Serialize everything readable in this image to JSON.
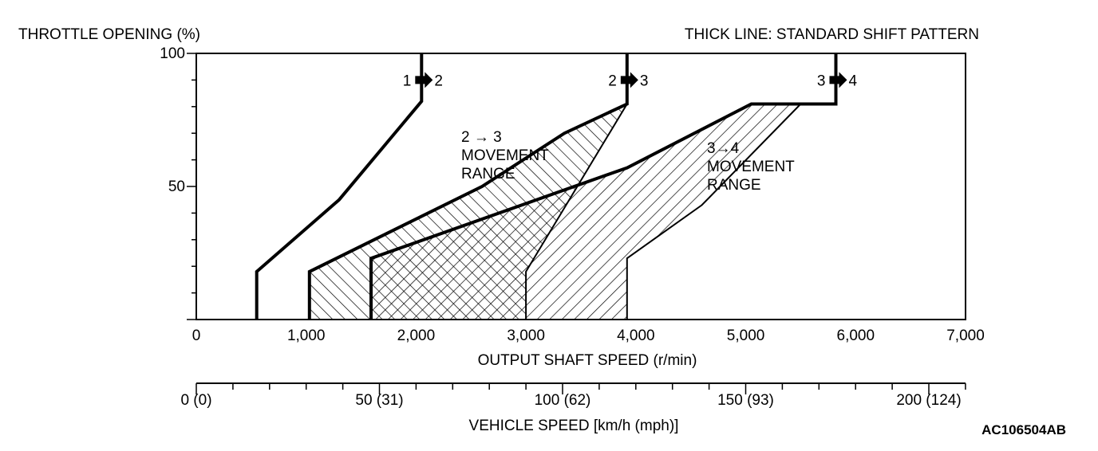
{
  "chart_data": {
    "type": "line",
    "y_axis_title": "THROTTLE OPENING (%)",
    "legend_note": "THICK LINE: STANDARD SHIFT PATTERN",
    "xlabel": "OUTPUT SHAFT SPEED (r/min)",
    "xlim": [
      0,
      7000
    ],
    "ylim": [
      0,
      100
    ],
    "x_ticks": [
      {
        "value": 0,
        "label": "0"
      },
      {
        "value": 1000,
        "label": "1,000"
      },
      {
        "value": 2000,
        "label": "2,000"
      },
      {
        "value": 3000,
        "label": "3,000"
      },
      {
        "value": 4000,
        "label": "4,000"
      },
      {
        "value": 5000,
        "label": "5,000"
      },
      {
        "value": 6000,
        "label": "6,000"
      },
      {
        "value": 7000,
        "label": "7,000"
      }
    ],
    "y_ticks": [
      {
        "value": 0,
        "label": ""
      },
      {
        "value": 50,
        "label": "50"
      },
      {
        "value": 100,
        "label": "100"
      }
    ],
    "secondary_axis": {
      "label": "VEHICLE SPEED [km/h (mph)]",
      "rpm_per_kmh": 33.33,
      "ticks": [
        {
          "value": 0,
          "label": "0 (0)"
        },
        {
          "value": 50,
          "label": "50 (31)"
        },
        {
          "value": 100,
          "label": "100 (62)"
        },
        {
          "value": 150,
          "label": "150 (93)"
        },
        {
          "value": 200,
          "label": "200 (124)"
        }
      ]
    },
    "series": [
      {
        "name": "1→2 shift (standard)",
        "label_from": "1",
        "label_to": "2",
        "points": [
          [
            550,
            0
          ],
          [
            550,
            18
          ],
          [
            1300,
            45
          ],
          [
            2050,
            82
          ],
          [
            2050,
            100
          ]
        ]
      },
      {
        "name": "2→3 shift (standard)",
        "label_from": "2",
        "label_to": "3",
        "points": [
          [
            1030,
            0
          ],
          [
            1030,
            18
          ],
          [
            2600,
            50
          ],
          [
            3350,
            70
          ],
          [
            3920,
            81
          ],
          [
            3920,
            100
          ]
        ]
      },
      {
        "name": "3→4 shift (standard)",
        "label_from": "3",
        "label_to": "4",
        "points": [
          [
            1590,
            0
          ],
          [
            1590,
            23
          ],
          [
            3920,
            57
          ],
          [
            5050,
            81
          ],
          [
            5820,
            81
          ],
          [
            5820,
            100
          ]
        ]
      },
      {
        "name": "2→3 range right boundary",
        "standard": false,
        "points": [
          [
            3000,
            0
          ],
          [
            3000,
            18
          ],
          [
            3920,
            81
          ]
        ]
      },
      {
        "name": "3→4 range right boundary",
        "standard": false,
        "points": [
          [
            3920,
            0
          ],
          [
            3920,
            23
          ],
          [
            4600,
            43
          ],
          [
            5500,
            81
          ]
        ]
      }
    ],
    "regions": [
      {
        "name": "2→3 movement range",
        "hatch": "backslash",
        "points": [
          [
            1030,
            0
          ],
          [
            1030,
            18
          ],
          [
            2600,
            50
          ],
          [
            3350,
            70
          ],
          [
            3920,
            81
          ],
          [
            3000,
            18
          ],
          [
            3000,
            0
          ]
        ]
      },
      {
        "name": "3→4 movement range",
        "hatch": "slash",
        "points": [
          [
            1590,
            0
          ],
          [
            1590,
            23
          ],
          [
            3920,
            57
          ],
          [
            5050,
            81
          ],
          [
            5500,
            81
          ],
          [
            4600,
            43
          ],
          [
            3920,
            23
          ],
          [
            3920,
            0
          ]
        ]
      }
    ],
    "annotations": [
      {
        "name": "23-range-label",
        "lines": [
          "2 → 3",
          "MOVEMENT",
          "RANGE"
        ]
      },
      {
        "name": "34-range-label",
        "lines": [
          "3→4",
          "MOVEMENT",
          "RANGE"
        ]
      }
    ],
    "figure_id": "AC106504AB"
  }
}
